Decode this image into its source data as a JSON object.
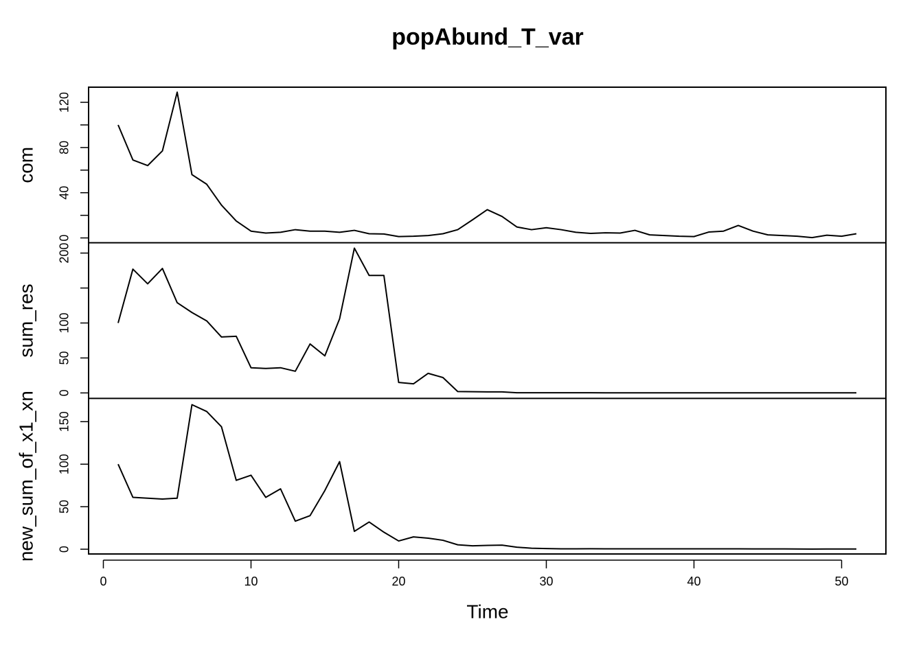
{
  "chart_data": {
    "type": "line",
    "title": "popAbund_T_var",
    "x_label": "Time",
    "color": "#000000",
    "x": [
      1,
      2,
      3,
      4,
      5,
      6,
      7,
      8,
      9,
      10,
      11,
      12,
      13,
      14,
      15,
      16,
      17,
      18,
      19,
      20,
      21,
      22,
      23,
      24,
      25,
      26,
      27,
      28,
      29,
      30,
      31,
      32,
      33,
      34,
      35,
      36,
      37,
      38,
      39,
      40,
      41,
      42,
      43,
      44,
      45,
      46,
      47,
      48,
      49,
      50,
      51
    ],
    "xlim": [
      -1,
      53
    ],
    "xticks": [
      0,
      10,
      20,
      30,
      40,
      50
    ],
    "panels": [
      {
        "y_label": "com",
        "ylim": [
          -4.3,
          133.4
        ],
        "yticks": [
          0,
          {
            "value": 20,
            "label": null
          },
          40,
          {
            "value": 60,
            "label": null
          },
          80,
          {
            "value": 100,
            "label": null
          },
          120
        ],
        "values": [
          100,
          69,
          64,
          77,
          129,
          56,
          47.5,
          29,
          15,
          6,
          4.3,
          5,
          7.3,
          6,
          6,
          5,
          6.7,
          3.7,
          3.5,
          1.2,
          1.5,
          2.1,
          3.7,
          7.3,
          16,
          25,
          19,
          9.7,
          7.3,
          9,
          7.3,
          5,
          4,
          4.5,
          4.3,
          6.7,
          2.7,
          2.1,
          1.5,
          1.2,
          5.2,
          6,
          11,
          6,
          2.7,
          2.1,
          1.5,
          0.3,
          2.4,
          1.5,
          3.7
        ]
      },
      {
        "y_label": "sum_res",
        "ylim": [
          -7.8,
          214.7
        ],
        "yticks": [
          0,
          50,
          100,
          {
            "value": 150,
            "label": null
          },
          200
        ],
        "values": [
          100,
          177,
          156,
          178,
          129,
          115,
          103,
          80,
          81,
          36,
          35,
          36,
          31,
          70,
          53,
          106,
          207,
          168,
          168,
          15,
          13,
          28,
          22,
          2,
          1.7,
          1.5,
          1.5,
          0.2,
          0.2,
          0.2,
          0.2,
          0.2,
          0.2,
          0.1,
          0.1,
          0.1,
          0.1,
          0.1,
          0.1,
          0.1,
          0.1,
          0.1,
          0.1,
          0.1,
          0.1,
          0.1,
          0.1,
          0.1,
          0.1,
          0.1,
          0.1
        ]
      },
      {
        "y_label": "new_sum_of_x1_xn",
        "ylim": [
          -5.6,
          177.4
        ],
        "yticks": [
          0,
          50,
          100,
          150
        ],
        "values": [
          100,
          61,
          60,
          59,
          60,
          170,
          162,
          144,
          81,
          87,
          61,
          71,
          33,
          39.5,
          69,
          103,
          21,
          32,
          20,
          9.7,
          14.5,
          13,
          10.5,
          5.2,
          4,
          4.5,
          4.8,
          2.4,
          1.2,
          0.8,
          0.5,
          0.5,
          0.6,
          0.5,
          0.5,
          0.5,
          0.5,
          0.5,
          0.5,
          0.5,
          0.5,
          0.5,
          0.5,
          0.4,
          0.4,
          0.4,
          0.3,
          0.2,
          0.3,
          0.3,
          0.3
        ]
      }
    ]
  }
}
